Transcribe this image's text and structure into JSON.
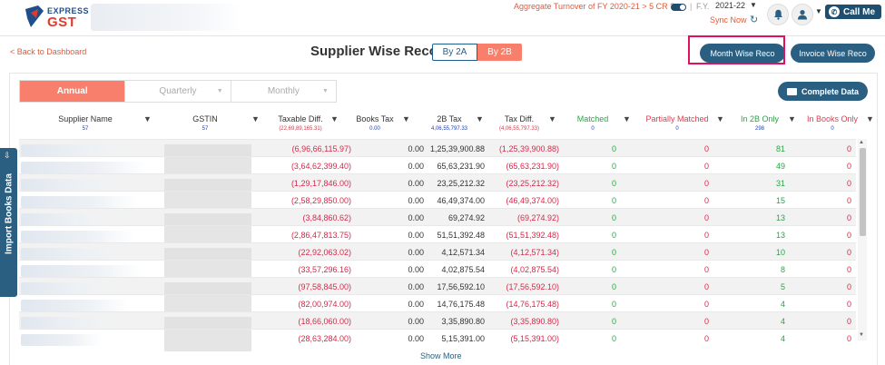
{
  "header": {
    "logo_line1": "EXPRESS",
    "logo_line2": "GST",
    "turnover_question": "Aggregate Turnover of FY 2020-21 > 5 CR ?",
    "fy_label": "F.Y.",
    "fy_value": "2021-22",
    "sync_label": "Sync Now",
    "call_label": "Call Me",
    "icons": [
      "bell-icon",
      "user-icon",
      "phone-icon",
      "sync-icon"
    ]
  },
  "nav": {
    "back": "< Back to Dashboard",
    "title": "Supplier Wise Reco.",
    "toggle": [
      "By 2A",
      "By 2B"
    ],
    "toggle_active": "By 2B",
    "month_wise": "Month Wise Reco",
    "invoice_wise": "Invoice Wise Reco"
  },
  "tabs": [
    {
      "label": "Annual",
      "active": true
    },
    {
      "label": "Quarterly",
      "active": false
    },
    {
      "label": "Monthly",
      "active": false
    }
  ],
  "complete_data": "Complete Data",
  "columns": [
    {
      "label": "Supplier Name",
      "sub": "57"
    },
    {
      "label": "GSTIN",
      "sub": "57"
    },
    {
      "label": "Taxable Diff.",
      "sub": "(22,69,89,165.31)"
    },
    {
      "label": "Books Tax",
      "sub": "0.00"
    },
    {
      "label": "2B Tax",
      "sub": "4,06,55,797.33"
    },
    {
      "label": "Tax Diff.",
      "sub": "(4,06,55,797.33)"
    },
    {
      "label": "Matched",
      "sub": "0"
    },
    {
      "label": "Partially Matched",
      "sub": "0"
    },
    {
      "label": "In 2B Only",
      "sub": "298"
    },
    {
      "label": "In Books Only",
      "sub": "0"
    }
  ],
  "rows": [
    {
      "taxable_diff": "(6,96,66,115.97)",
      "books_tax": "0.00",
      "tax_2b": "1,25,39,900.88",
      "tax_diff": "(1,25,39,900.88)",
      "matched": "0",
      "partial": "0",
      "in_2b": "81",
      "in_books": "0"
    },
    {
      "taxable_diff": "(3,64,62,399.40)",
      "books_tax": "0.00",
      "tax_2b": "65,63,231.90",
      "tax_diff": "(65,63,231.90)",
      "matched": "0",
      "partial": "0",
      "in_2b": "49",
      "in_books": "0"
    },
    {
      "taxable_diff": "(1,29,17,846.00)",
      "books_tax": "0.00",
      "tax_2b": "23,25,212.32",
      "tax_diff": "(23,25,212.32)",
      "matched": "0",
      "partial": "0",
      "in_2b": "31",
      "in_books": "0"
    },
    {
      "taxable_diff": "(2,58,29,850.00)",
      "books_tax": "0.00",
      "tax_2b": "46,49,374.00",
      "tax_diff": "(46,49,374.00)",
      "matched": "0",
      "partial": "0",
      "in_2b": "15",
      "in_books": "0"
    },
    {
      "taxable_diff": "(3,84,860.62)",
      "books_tax": "0.00",
      "tax_2b": "69,274.92",
      "tax_diff": "(69,274.92)",
      "matched": "0",
      "partial": "0",
      "in_2b": "13",
      "in_books": "0"
    },
    {
      "taxable_diff": "(2,86,47,813.75)",
      "books_tax": "0.00",
      "tax_2b": "51,51,392.48",
      "tax_diff": "(51,51,392.48)",
      "matched": "0",
      "partial": "0",
      "in_2b": "13",
      "in_books": "0"
    },
    {
      "taxable_diff": "(22,92,063.02)",
      "books_tax": "0.00",
      "tax_2b": "4,12,571.34",
      "tax_diff": "(4,12,571.34)",
      "matched": "0",
      "partial": "0",
      "in_2b": "10",
      "in_books": "0"
    },
    {
      "taxable_diff": "(33,57,296.16)",
      "books_tax": "0.00",
      "tax_2b": "4,02,875.54",
      "tax_diff": "(4,02,875.54)",
      "matched": "0",
      "partial": "0",
      "in_2b": "8",
      "in_books": "0"
    },
    {
      "taxable_diff": "(97,58,845.00)",
      "books_tax": "0.00",
      "tax_2b": "17,56,592.10",
      "tax_diff": "(17,56,592.10)",
      "matched": "0",
      "partial": "0",
      "in_2b": "5",
      "in_books": "0"
    },
    {
      "taxable_diff": "(82,00,974.00)",
      "books_tax": "0.00",
      "tax_2b": "14,76,175.48",
      "tax_diff": "(14,76,175.48)",
      "matched": "0",
      "partial": "0",
      "in_2b": "4",
      "in_books": "0"
    },
    {
      "taxable_diff": "(18,66,060.00)",
      "books_tax": "0.00",
      "tax_2b": "3,35,890.80",
      "tax_diff": "(3,35,890.80)",
      "matched": "0",
      "partial": "0",
      "in_2b": "4",
      "in_books": "0"
    },
    {
      "taxable_diff": "(28,63,284.00)",
      "books_tax": "0.00",
      "tax_2b": "5,15,391.00",
      "tax_diff": "(5,15,391.00)",
      "matched": "0",
      "partial": "0",
      "in_2b": "4",
      "in_books": "0"
    }
  ],
  "show_more": "Show More",
  "import_books": "Import Books Data",
  "colors": {
    "brand": "#2a5f82",
    "accent": "#f77f6b",
    "negative": "#d42a4a",
    "positive": "#28a745",
    "highlight": "#e0115f"
  }
}
